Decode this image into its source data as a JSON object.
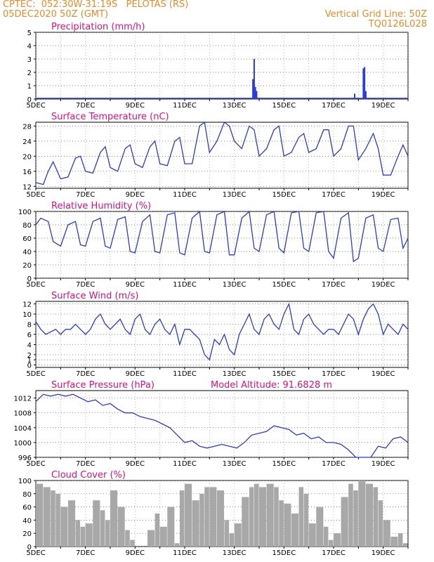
{
  "header": {
    "line1": "CPTEC:  052:30W-31:19S   PELOTAS (RS)",
    "line2": "05DEC2020 50Z (GMT)",
    "right1": "Vertical Grid Line: 50Z",
    "right2": "TQ0126L028"
  },
  "x_ticks": [
    "5DEC",
    "7DEC",
    "9DEC",
    "11DEC",
    "13DEC",
    "15DEC",
    "17DEC",
    "19DEC"
  ],
  "x_range_days": [
    5,
    20
  ],
  "colors": {
    "header": "#e98b2c",
    "title": "#e0117a",
    "line": "#2a3bd9",
    "cloud": "#a8a8a8"
  },
  "chart_data": [
    {
      "type": "bar",
      "title": "Precipitation (mm/h)",
      "ylim": [
        0,
        5
      ],
      "yticks": [
        0,
        1,
        2,
        3,
        4,
        5
      ],
      "x": [
        13.75,
        13.8,
        13.85,
        13.9,
        17.85,
        18.2,
        18.25,
        18.3
      ],
      "values": [
        1.5,
        3.0,
        0.9,
        0.6,
        0.4,
        2.3,
        2.4,
        0.6
      ]
    },
    {
      "type": "line",
      "title": "Surface Temperature (nC)",
      "ylim": [
        11.5,
        29
      ],
      "yticks": [
        12,
        16,
        20,
        24,
        28
      ],
      "x": [
        5,
        5.3,
        5.5,
        5.7,
        6.0,
        6.3,
        6.6,
        6.8,
        7.0,
        7.3,
        7.6,
        7.8,
        8.0,
        8.3,
        8.6,
        8.8,
        9.0,
        9.3,
        9.6,
        9.8,
        10.0,
        10.3,
        10.6,
        10.8,
        11.0,
        11.3,
        11.6,
        11.8,
        12.0,
        12.3,
        12.6,
        12.8,
        13.0,
        13.3,
        13.6,
        13.8,
        14.0,
        14.3,
        14.6,
        14.8,
        15.0,
        15.3,
        15.6,
        15.8,
        16.0,
        16.3,
        16.6,
        16.8,
        17.0,
        17.3,
        17.6,
        17.8,
        18.0,
        18.3,
        18.6,
        18.8,
        19.0,
        19.3,
        19.6,
        19.8,
        20.0
      ],
      "y": [
        13,
        12.5,
        16,
        18.5,
        14,
        14.5,
        19.5,
        20,
        16,
        15.5,
        21,
        22.5,
        17,
        16,
        22,
        23,
        18,
        17,
        22.5,
        24,
        18,
        17.5,
        24,
        25,
        18,
        18,
        28,
        29,
        21,
        24,
        29,
        28,
        24,
        22,
        28,
        27,
        20,
        22,
        27,
        28,
        20,
        21,
        25,
        26,
        21,
        22,
        27,
        27,
        20,
        22,
        28,
        28,
        19,
        22,
        26,
        22,
        15,
        15,
        20,
        23,
        20
      ]
    },
    {
      "type": "line",
      "title": "Relative Humidity (%)",
      "ylim": [
        0,
        100
      ],
      "yticks": [
        0,
        20,
        40,
        60,
        80,
        100
      ],
      "x": [
        5,
        5.2,
        5.5,
        5.7,
        6.0,
        6.3,
        6.6,
        6.8,
        7.0,
        7.3,
        7.6,
        7.8,
        8.0,
        8.3,
        8.6,
        8.8,
        9.0,
        9.3,
        9.6,
        9.8,
        10.0,
        10.3,
        10.6,
        10.8,
        11.0,
        11.3,
        11.6,
        11.8,
        12.0,
        12.3,
        12.6,
        12.8,
        13.0,
        13.3,
        13.6,
        13.8,
        14.0,
        14.3,
        14.6,
        14.8,
        15.0,
        15.3,
        15.6,
        15.8,
        16.0,
        16.3,
        16.6,
        16.8,
        17.0,
        17.3,
        17.6,
        17.8,
        18.0,
        18.3,
        18.6,
        18.8,
        19.0,
        19.3,
        19.6,
        19.8,
        20.0
      ],
      "y": [
        80,
        90,
        85,
        55,
        48,
        80,
        85,
        50,
        48,
        85,
        90,
        48,
        45,
        88,
        92,
        40,
        38,
        85,
        95,
        40,
        38,
        95,
        98,
        38,
        35,
        90,
        100,
        40,
        38,
        95,
        100,
        35,
        35,
        90,
        100,
        45,
        40,
        95,
        100,
        45,
        38,
        98,
        100,
        45,
        40,
        98,
        100,
        40,
        30,
        90,
        98,
        25,
        30,
        90,
        95,
        45,
        40,
        88,
        90,
        45,
        60
      ]
    },
    {
      "type": "line",
      "title": "Surface Wind (m/s)",
      "ylim": [
        -0.5,
        12.5
      ],
      "yticks": [
        0,
        1,
        2,
        4,
        6,
        8,
        10,
        12
      ],
      "x": [
        5,
        5.2,
        5.4,
        5.6,
        5.8,
        6.0,
        6.2,
        6.4,
        6.6,
        6.8,
        7.0,
        7.2,
        7.4,
        7.6,
        7.8,
        8.0,
        8.2,
        8.4,
        8.6,
        8.8,
        9.0,
        9.2,
        9.4,
        9.6,
        9.8,
        10.0,
        10.2,
        10.4,
        10.6,
        10.8,
        11.0,
        11.2,
        11.4,
        11.6,
        11.8,
        12.0,
        12.2,
        12.4,
        12.6,
        12.8,
        13.0,
        13.2,
        13.4,
        13.6,
        13.8,
        14.0,
        14.2,
        14.4,
        14.6,
        14.8,
        15.0,
        15.2,
        15.4,
        15.6,
        15.8,
        16.0,
        16.2,
        16.4,
        16.6,
        16.8,
        17.0,
        17.2,
        17.4,
        17.6,
        17.8,
        18.0,
        18.2,
        18.4,
        18.6,
        18.8,
        19.0,
        19.2,
        19.4,
        19.6,
        19.8,
        20.0
      ],
      "y": [
        8.5,
        7,
        6,
        6.5,
        7,
        6,
        7,
        7,
        8,
        7,
        6,
        7,
        9,
        10,
        8,
        7,
        8,
        9,
        7,
        6,
        9,
        10,
        7,
        6,
        8,
        9,
        7,
        6,
        8,
        4,
        7,
        7,
        6,
        5,
        2,
        1,
        5,
        4,
        6,
        3,
        2,
        6,
        8,
        10,
        7,
        6,
        9,
        10,
        8,
        7,
        10,
        12,
        7,
        6,
        9,
        10,
        8,
        7,
        6,
        7,
        7,
        6,
        8,
        10,
        9,
        6,
        9,
        11,
        12,
        10,
        6,
        8,
        7,
        6,
        8,
        7
      ]
    },
    {
      "type": "line",
      "title": "Surface Pressure (hPa)",
      "annotation": "Model Altitude: 91.6828 m",
      "ylim": [
        996,
        1014
      ],
      "yticks": [
        996,
        1000,
        1004,
        1008,
        1012
      ],
      "x": [
        5,
        5.3,
        5.6,
        5.9,
        6.2,
        6.5,
        6.8,
        7.1,
        7.4,
        7.7,
        8.0,
        8.3,
        8.6,
        8.9,
        9.2,
        9.5,
        9.8,
        10.1,
        10.4,
        10.7,
        11.0,
        11.3,
        11.6,
        11.9,
        12.2,
        12.5,
        12.8,
        13.1,
        13.4,
        13.7,
        14.0,
        14.3,
        14.6,
        14.9,
        15.2,
        15.5,
        15.8,
        16.1,
        16.4,
        16.7,
        17.0,
        17.3,
        17.6,
        17.9,
        18.2,
        18.5,
        18.8,
        19.1,
        19.4,
        19.7,
        20.0
      ],
      "y": [
        1011,
        1013,
        1012.5,
        1013,
        1012.5,
        1013,
        1012,
        1011,
        1011.5,
        1010,
        1010.5,
        1009,
        1008,
        1008,
        1007,
        1006.5,
        1006,
        1005,
        1004,
        1002,
        1000,
        1000.5,
        999,
        998.5,
        999,
        999.5,
        999,
        998.5,
        1000,
        1002,
        1002.5,
        1003,
        1004.5,
        1004,
        1003.5,
        1002,
        1002.5,
        1001,
        1001.5,
        1000,
        1000,
        999.5,
        998,
        996,
        995,
        995.5,
        999,
        998.5,
        1001,
        1001.5,
        1000
      ]
    },
    {
      "type": "area",
      "title": "Cloud Cover (%)",
      "ylim": [
        0,
        100
      ],
      "yticks": [
        0,
        20,
        40,
        60,
        80,
        100
      ],
      "x": [
        5.0,
        5.3,
        5.6,
        5.8,
        6.0,
        6.3,
        6.6,
        6.8,
        7.0,
        7.3,
        7.6,
        7.8,
        8.0,
        8.3,
        8.6,
        8.8,
        9.0,
        9.2,
        9.5,
        9.8,
        10.0,
        10.3,
        10.6,
        10.8,
        11.0,
        11.3,
        11.6,
        11.8,
        12.0,
        12.3,
        12.6,
        12.8,
        13.0,
        13.3,
        13.6,
        13.8,
        14.0,
        14.3,
        14.6,
        14.8,
        15.0,
        15.3,
        15.6,
        15.8,
        16.0,
        16.3,
        16.6,
        16.8,
        17.0,
        17.3,
        17.6,
        17.8,
        18.0,
        18.3,
        18.6,
        18.8,
        19.0,
        19.3,
        19.6,
        19.8,
        20.0
      ],
      "y": [
        95,
        90,
        85,
        80,
        60,
        70,
        40,
        30,
        35,
        70,
        55,
        40,
        85,
        60,
        25,
        10,
        0,
        0,
        25,
        50,
        30,
        60,
        5,
        85,
        95,
        70,
        80,
        90,
        90,
        85,
        40,
        20,
        35,
        75,
        90,
        95,
        90,
        95,
        90,
        70,
        65,
        50,
        90,
        80,
        35,
        60,
        30,
        10,
        20,
        75,
        95,
        85,
        100,
        95,
        90,
        70,
        40,
        15,
        20,
        5,
        0
      ]
    }
  ]
}
